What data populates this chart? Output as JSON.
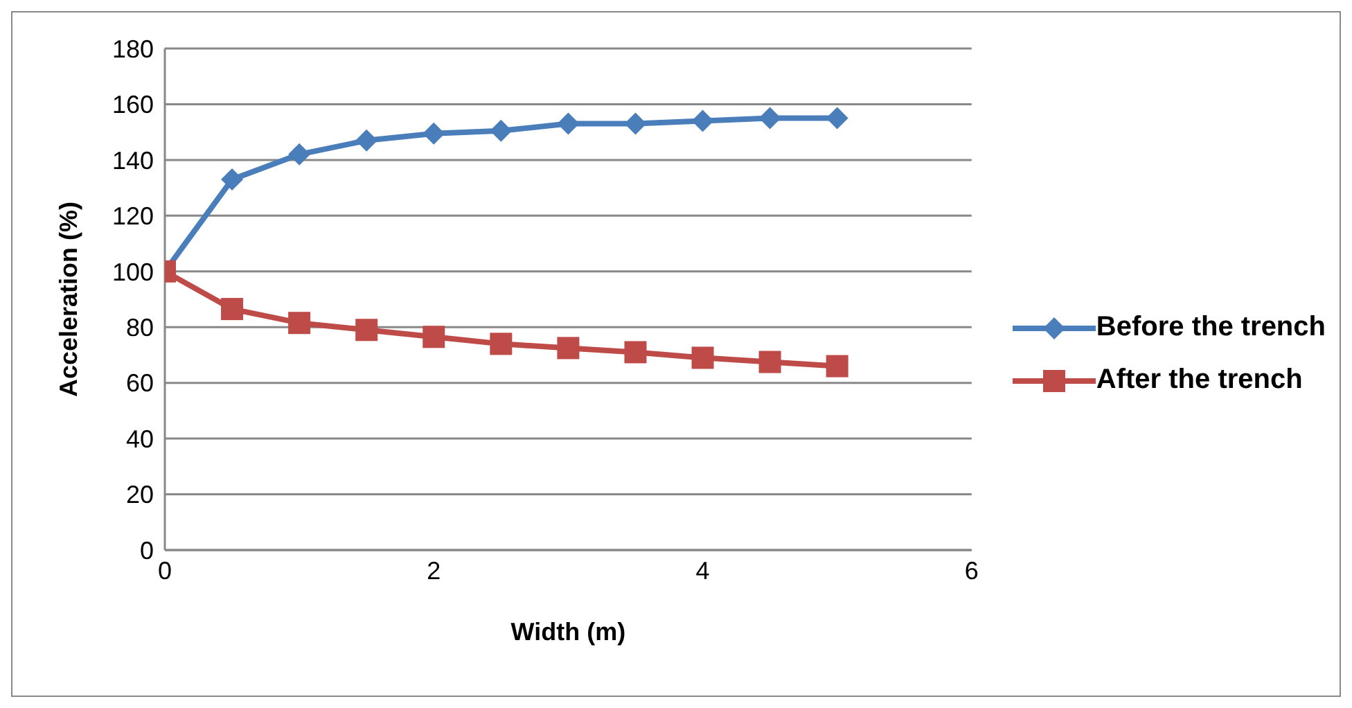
{
  "chart_data": {
    "type": "line",
    "xlabel": "Width (m)",
    "ylabel": "Acceleration (%)",
    "x": [
      0,
      0.5,
      1,
      1.5,
      2,
      2.5,
      3,
      3.5,
      4,
      4.5,
      5
    ],
    "series": [
      {
        "name": "Before the trench",
        "color": "#4a7ebb",
        "marker": "diamond",
        "values": [
          100,
          133,
          142,
          147,
          149.5,
          150.5,
          153,
          153,
          154,
          155,
          155
        ]
      },
      {
        "name": "After the trench",
        "color": "#be4b48",
        "marker": "square",
        "values": [
          100,
          86.5,
          81.5,
          79,
          76.5,
          74,
          72.5,
          71,
          69,
          67.5,
          66
        ]
      }
    ],
    "xlim": [
      0,
      6
    ],
    "xticks": [
      0,
      2,
      4,
      6
    ],
    "ylim": [
      0,
      180
    ],
    "yticks": [
      0,
      20,
      40,
      60,
      80,
      100,
      120,
      140,
      160,
      180
    ],
    "grid": "y",
    "legend": "right"
  }
}
